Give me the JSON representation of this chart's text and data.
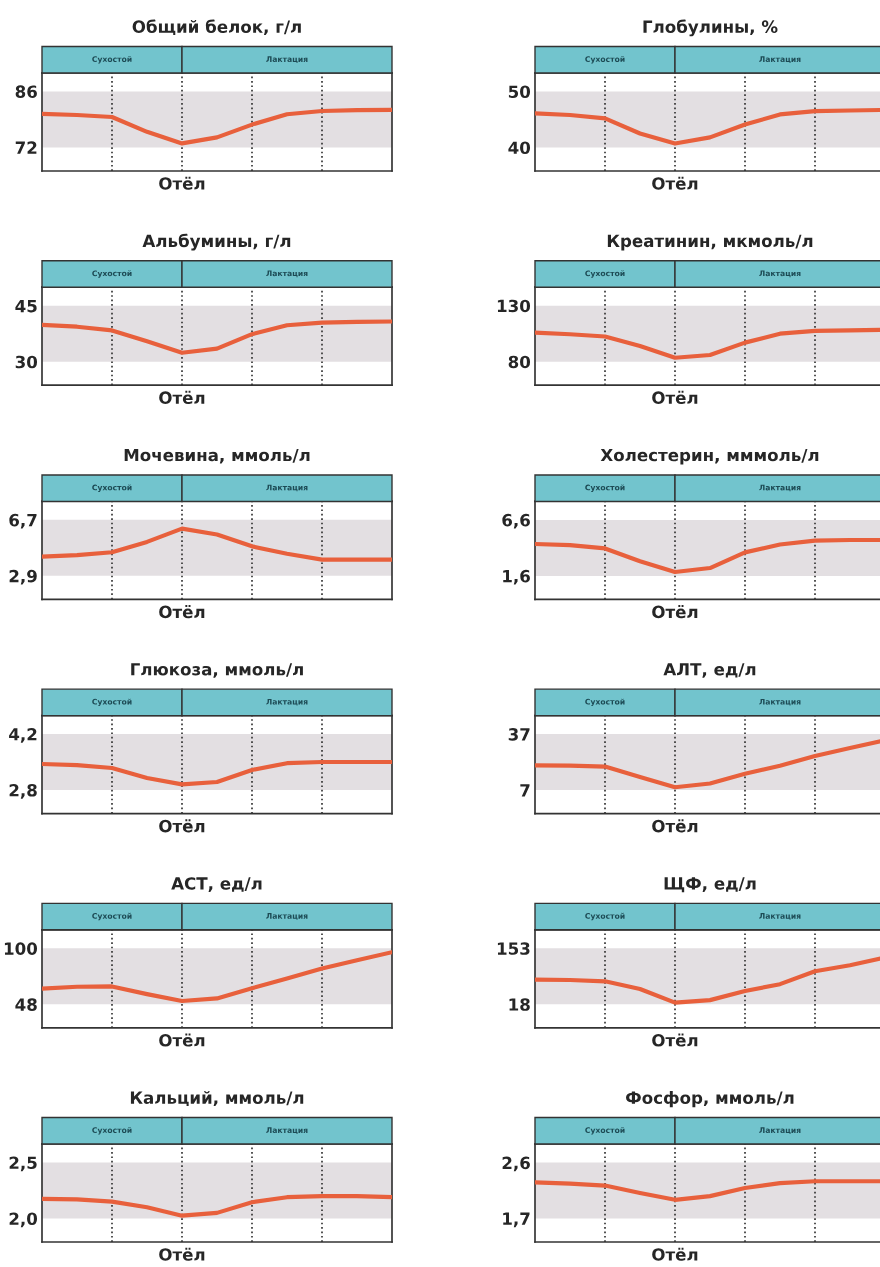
{
  "chart_data": [
    {
      "type": "line",
      "title": "Общий белок, г/л",
      "categories": [
        null,
        null,
        null,
        null,
        null,
        null,
        null,
        null,
        null,
        null,
        null
      ],
      "series": [
        {
          "color": "#e8603c",
          "values": [
            80.4,
            80.1,
            79.6,
            75.9,
            73.0,
            74.5,
            77.7,
            80.3,
            81.1,
            81.3,
            81.4
          ]
        }
      ],
      "ylim": [
        66.1,
        90.6
      ],
      "yticks": [
        72,
        86
      ],
      "tick_labels": "y",
      "grid": "x",
      "bands": [
        {
          "axis": "y",
          "from": 72,
          "to": 86,
          "color": "#e3dfe2"
        }
      ],
      "annotations": [
        "Сухостой",
        "Лактация",
        "Отёл"
      ]
    },
    {
      "type": "line",
      "title": "Глобулины, %",
      "categories": [
        null,
        null,
        null,
        null,
        null,
        null,
        null,
        null,
        null,
        null,
        null
      ],
      "series": [
        {
          "color": "#e8603c",
          "values": [
            46.1,
            45.8,
            45.2,
            42.5,
            40.7,
            41.8,
            44.1,
            45.9,
            46.5,
            46.6,
            46.7
          ]
        }
      ],
      "ylim": [
        35.8,
        53.3
      ],
      "yticks": [
        40,
        50
      ],
      "tick_labels": "y",
      "grid": "x",
      "bands": [
        {
          "axis": "y",
          "from": 40,
          "to": 50,
          "color": "#e3dfe2"
        }
      ],
      "annotations": [
        "Сухостой",
        "Лактация",
        "Отёл"
      ]
    },
    {
      "type": "line",
      "title": "Альбумины, г/л",
      "categories": [
        null,
        null,
        null,
        null,
        null,
        null,
        null,
        null,
        null,
        null,
        null
      ],
      "series": [
        {
          "color": "#e8603c",
          "values": [
            39.9,
            39.4,
            38.4,
            35.5,
            32.4,
            33.5,
            37.4,
            39.8,
            40.5,
            40.7,
            40.8
          ]
        }
      ],
      "ylim": [
        23.7,
        50
      ],
      "yticks": [
        30,
        45
      ],
      "tick_labels": "y",
      "grid": "x",
      "bands": [
        {
          "axis": "y",
          "from": 30,
          "to": 45,
          "color": "#e3dfe2"
        }
      ],
      "annotations": [
        "Сухостой",
        "Лактация",
        "Отёл"
      ]
    },
    {
      "type": "line",
      "title": "Креатинин, мкмоль/л",
      "categories": [
        null,
        null,
        null,
        null,
        null,
        null,
        null,
        null,
        null,
        null,
        null
      ],
      "series": [
        {
          "color": "#e8603c",
          "values": [
            106,
            104.5,
            102.5,
            94,
            83.5,
            86,
            97,
            105,
            107.5,
            108,
            108.5
          ]
        }
      ],
      "ylim": [
        59,
        146.5
      ],
      "yticks": [
        80,
        130
      ],
      "tick_labels": "y",
      "grid": "x",
      "bands": [
        {
          "axis": "y",
          "from": 80,
          "to": 130,
          "color": "#e3dfe2"
        }
      ],
      "annotations": [
        "Сухостой",
        "Лактация",
        "Отёл"
      ]
    },
    {
      "type": "line",
      "title": "Мочевина, ммоль/л",
      "categories": [
        null,
        null,
        null,
        null,
        null,
        null,
        null,
        null,
        null,
        null,
        null
      ],
      "series": [
        {
          "color": "#e8603c",
          "values": [
            4.2,
            4.3,
            4.5,
            5.2,
            6.1,
            5.7,
            4.9,
            4.4,
            4.0,
            4.0,
            4.0
          ]
        }
      ],
      "ylim": [
        1.3,
        7.95
      ],
      "yticks": [
        {
          "value": 2.9,
          "label": "2,9"
        },
        {
          "value": 6.7,
          "label": "6,7"
        }
      ],
      "tick_labels": "y",
      "grid": "x",
      "bands": [
        {
          "axis": "y",
          "from": 2.9,
          "to": 6.7,
          "color": "#e3dfe2"
        }
      ],
      "annotations": [
        "Сухостой",
        "Лактация",
        "Отёл"
      ]
    },
    {
      "type": "line",
      "title": "Холестерин, мммоль/л",
      "categories": [
        null,
        null,
        null,
        null,
        null,
        null,
        null,
        null,
        null,
        null,
        null
      ],
      "series": [
        {
          "color": "#e8603c",
          "values": [
            4.45,
            4.35,
            4.05,
            2.9,
            1.95,
            2.3,
            3.7,
            4.4,
            4.75,
            4.8,
            4.8
          ]
        }
      ],
      "ylim": [
        -0.5,
        8.25
      ],
      "yticks": [
        {
          "value": 1.6,
          "label": "1,6"
        },
        {
          "value": 6.6,
          "label": "6,6"
        }
      ],
      "tick_labels": "y",
      "grid": "x",
      "bands": [
        {
          "axis": "y",
          "from": 1.6,
          "to": 6.6,
          "color": "#e3dfe2"
        }
      ],
      "annotations": [
        "Сухостой",
        "Лактация",
        "Отёл"
      ]
    },
    {
      "type": "line",
      "title": "Глюкоза, ммоль/л",
      "categories": [
        null,
        null,
        null,
        null,
        null,
        null,
        null,
        null,
        null,
        null,
        null
      ],
      "series": [
        {
          "color": "#e8603c",
          "values": [
            3.45,
            3.42,
            3.35,
            3.1,
            2.94,
            3.0,
            3.3,
            3.47,
            3.5,
            3.5,
            3.5
          ]
        }
      ],
      "ylim": [
        2.21,
        4.66
      ],
      "yticks": [
        {
          "value": 2.8,
          "label": "2,8"
        },
        {
          "value": 4.2,
          "label": "4,2"
        }
      ],
      "tick_labels": "y",
      "grid": "x",
      "bands": [
        {
          "axis": "y",
          "from": 2.8,
          "to": 4.2,
          "color": "#e3dfe2"
        }
      ],
      "annotations": [
        "Сухостой",
        "Лактация",
        "Отёл"
      ]
    },
    {
      "type": "line",
      "title": "АЛТ, ед/л",
      "categories": [
        null,
        null,
        null,
        null,
        null,
        null,
        null,
        null,
        null,
        null,
        null
      ],
      "series": [
        {
          "color": "#e8603c",
          "values": [
            20.2,
            20.1,
            19.6,
            14,
            8.5,
            10.5,
            15.7,
            20,
            25.3,
            29.5,
            33.7
          ]
        }
      ],
      "ylim": [
        -5.6,
        46.9
      ],
      "yticks": [
        7,
        37
      ],
      "tick_labels": "y",
      "grid": "x",
      "bands": [
        {
          "axis": "y",
          "from": 7,
          "to": 37,
          "color": "#e3dfe2"
        }
      ],
      "annotations": [
        "Сухостой",
        "Лактация",
        "Отёл"
      ]
    },
    {
      "type": "line",
      "title": "АСТ, ед/л",
      "categories": [
        null,
        null,
        null,
        null,
        null,
        null,
        null,
        null,
        null,
        null,
        null
      ],
      "series": [
        {
          "color": "#e8603c",
          "values": [
            62.6,
            64.3,
            64.6,
            57.5,
            51.1,
            53.5,
            63,
            72,
            81.3,
            89,
            96.4
          ]
        }
      ],
      "ylim": [
        26.2,
        117.2
      ],
      "yticks": [
        48,
        100
      ],
      "tick_labels": "y",
      "grid": "x",
      "bands": [
        {
          "axis": "y",
          "from": 48,
          "to": 100,
          "color": "#e3dfe2"
        }
      ],
      "annotations": [
        "Сухостой",
        "Лактация",
        "Отёл"
      ]
    },
    {
      "type": "line",
      "title": "ЩФ, ед/л",
      "categories": [
        null,
        null,
        null,
        null,
        null,
        null,
        null,
        null,
        null,
        null,
        null
      ],
      "series": [
        {
          "color": "#e8603c",
          "values": [
            77.4,
            76.5,
            73.4,
            55,
            22,
            28,
            50,
            66.5,
            97.7,
            112,
            131
          ]
        }
      ],
      "ylim": [
        -38.7,
        197.6
      ],
      "yticks": [
        18,
        153
      ],
      "tick_labels": "y",
      "grid": "x",
      "bands": [
        {
          "axis": "y",
          "from": 18,
          "to": 153,
          "color": "#e3dfe2"
        }
      ],
      "annotations": [
        "Сухостой",
        "Лактация",
        "Отёл"
      ]
    },
    {
      "type": "line",
      "title": "Кальций, ммоль/л",
      "categories": [
        null,
        null,
        null,
        null,
        null,
        null,
        null,
        null,
        null,
        null,
        null
      ],
      "series": [
        {
          "color": "#e8603c",
          "values": [
            2.175,
            2.17,
            2.15,
            2.1,
            2.025,
            2.05,
            2.145,
            2.19,
            2.2,
            2.2,
            2.19
          ]
        }
      ],
      "ylim": [
        1.79,
        2.665
      ],
      "yticks": [
        {
          "value": 2.0,
          "label": "2,0"
        },
        {
          "value": 2.5,
          "label": "2,5"
        }
      ],
      "tick_labels": "y",
      "grid": "x",
      "bands": [
        {
          "axis": "y",
          "from": 2.0,
          "to": 2.5,
          "color": "#e3dfe2"
        }
      ],
      "annotations": [
        "Сухостой",
        "Лактация",
        "Отёл"
      ]
    },
    {
      "type": "line",
      "title": "Фосфор, ммоль/л",
      "categories": [
        null,
        null,
        null,
        null,
        null,
        null,
        null,
        null,
        null,
        null,
        null
      ],
      "series": [
        {
          "color": "#e8603c",
          "values": [
            2.28,
            2.26,
            2.23,
            2.11,
            2.0,
            2.06,
            2.19,
            2.27,
            2.3,
            2.3,
            2.3
          ]
        }
      ],
      "ylim": [
        1.32,
        2.9
      ],
      "yticks": [
        {
          "value": 1.7,
          "label": "1,7"
        },
        {
          "value": 2.6,
          "label": "2,6"
        }
      ],
      "tick_labels": "y",
      "grid": "x",
      "bands": [
        {
          "axis": "y",
          "from": 1.7,
          "to": 2.6,
          "color": "#e3dfe2"
        }
      ],
      "annotations": [
        "Сухостой",
        "Лактация",
        "Отёл"
      ]
    }
  ]
}
